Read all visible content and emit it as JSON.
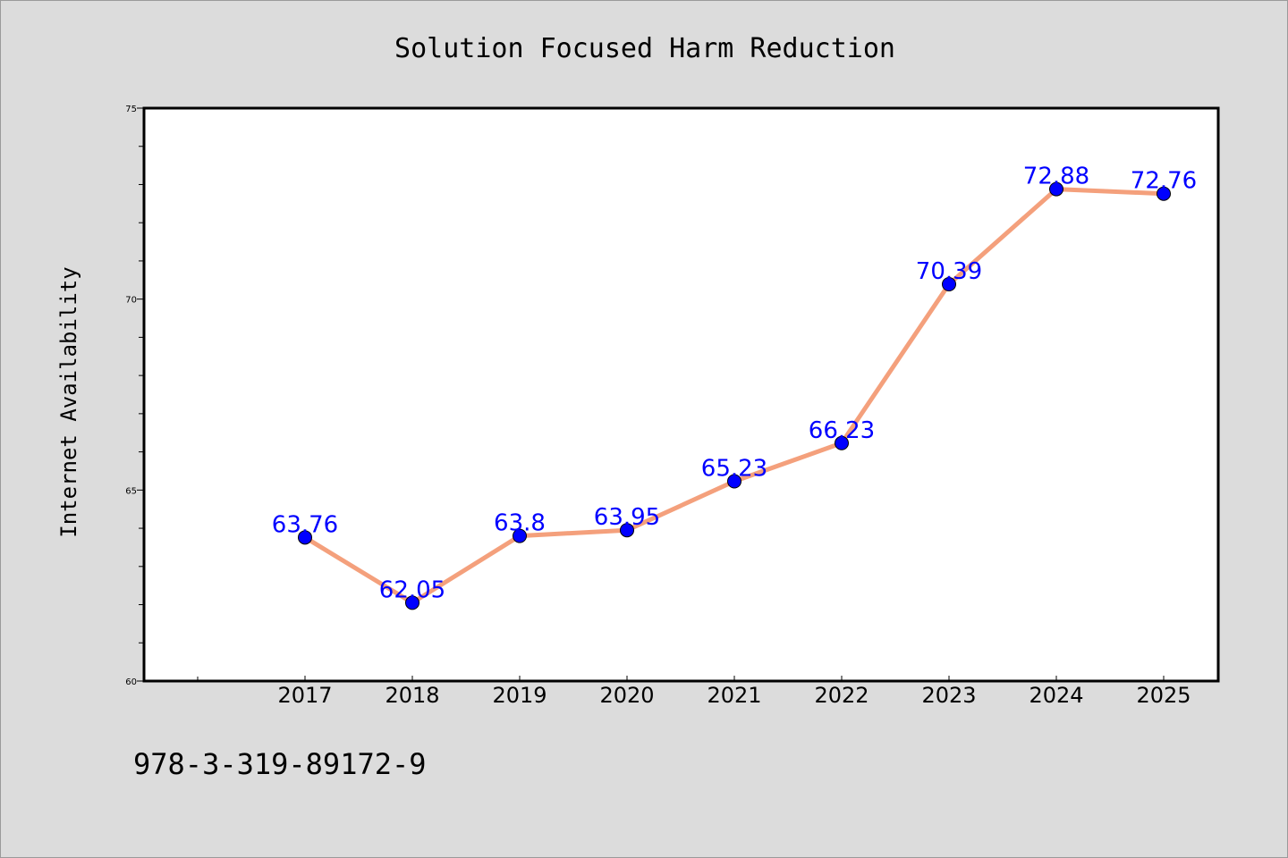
{
  "chart_data": {
    "type": "line",
    "title": "Solution Focused Harm Reduction",
    "xlabel": "",
    "ylabel": "Internet Availability",
    "categories": [
      "2017",
      "2018",
      "2019",
      "2020",
      "2021",
      "2022",
      "2023",
      "2024",
      "2025"
    ],
    "series": [
      {
        "values": [
          63.76,
          62.05,
          63.8,
          63.95,
          65.23,
          66.23,
          70.39,
          72.88,
          72.76
        ],
        "labels": [
          "63.76",
          "62.05",
          "63.8",
          "63.95",
          "65.23",
          "66.23",
          "70.39",
          "72.88",
          "72.76"
        ],
        "line_color": "#f4a07c",
        "marker_color": "#0000ff",
        "label_color": "#0000ff"
      }
    ],
    "ylim": [
      60,
      75
    ],
    "yticks": [
      "60",
      "65",
      "70",
      "75"
    ],
    "grid": false,
    "legend": "none"
  },
  "footnote": "978-3-319-89172-9",
  "colors": {
    "background": "#dcdcdc",
    "plot_background": "#ffffff"
  }
}
